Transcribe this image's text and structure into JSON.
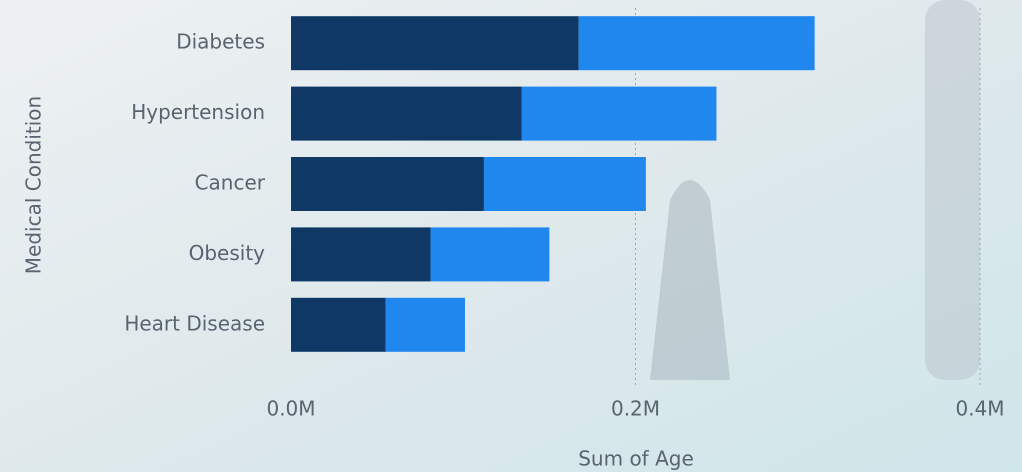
{
  "chart_data": {
    "type": "stacked-hbar",
    "y_label": "Medical Condition",
    "x_label": "Sum of Age",
    "categories": [
      "Diabetes",
      "Hypertension",
      "Cancer",
      "Obesity",
      "Heart Disease"
    ],
    "series": [
      {
        "color": "#0f3866",
        "values": [
          167000,
          134000,
          112000,
          81000,
          55000
        ]
      },
      {
        "color": "#1f87ee",
        "values": [
          137000,
          113000,
          94000,
          69000,
          46000
        ]
      }
    ],
    "xlim": [
      0,
      400000
    ],
    "xticks": [
      {
        "value": 0,
        "label": "0.0M"
      },
      {
        "value": 200000,
        "label": "0.2M"
      },
      {
        "value": 400000,
        "label": "0.4M"
      }
    ],
    "grid": true
  }
}
